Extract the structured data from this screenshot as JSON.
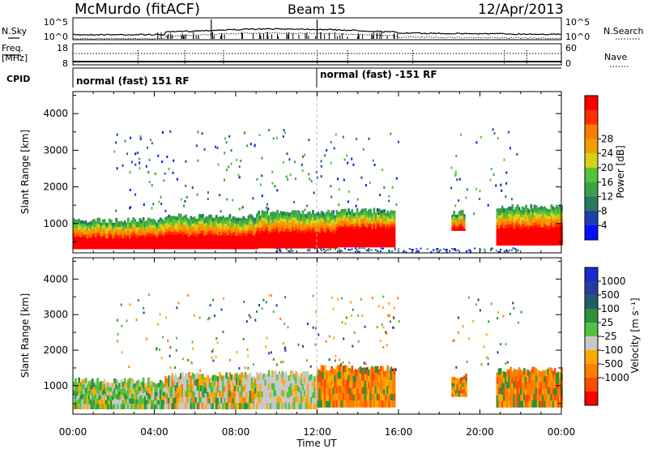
{
  "header": {
    "station": "McMurdo (fitACF)",
    "beam": "Beam 15",
    "date": "12/Apr/2013"
  },
  "strip": {
    "nsky_label": "N.Sky",
    "nsky_ticks": [
      "10^5",
      "10^0"
    ],
    "nsearch_label": "N.Search",
    "nsearch_ticks": [
      "10^5",
      "10^0"
    ],
    "freq_label": "Freq.",
    "freq_unit": "[MHz]",
    "freq_ticks": [
      "18",
      "8"
    ],
    "nave_label": "Nave",
    "nave_ticks": [
      "60",
      "0"
    ],
    "cpid_label": "CPID",
    "cpid_left": "normal (fast) 151 RF",
    "cpid_right": "normal (fast) -151 RF"
  },
  "colors": {
    "power": [
      "#0010ff",
      "#1f3fb0",
      "#287a5a",
      "#3aa34a",
      "#55c23a",
      "#d6d21a",
      "#f0a000",
      "#ff7a00",
      "#ff3000",
      "#ff0000"
    ],
    "velocity": [
      "#ff0000",
      "#ff4a00",
      "#ff8000",
      "#ffa800",
      "#c8c8c8",
      "#50c040",
      "#2f8f3f",
      "#235c6a",
      "#2a3aa0",
      "#1a2dcc"
    ]
  },
  "chart_data": [
    {
      "type": "heatmap",
      "name": "power",
      "ylabel": "Slant Range [km]",
      "yticks": [
        "1000",
        "2000",
        "3000",
        "4000"
      ],
      "ylim": [
        200,
        4600
      ],
      "xlim": [
        0,
        24
      ],
      "colorbar_label": "Power [dB]",
      "colorbar_ticks": [
        "4",
        "8",
        "12",
        "16",
        "20",
        "24",
        "28"
      ],
      "colorbar_range": [
        0,
        32
      ],
      "regions": [
        {
          "x0": 0.0,
          "x1": 4.5,
          "lower": 300,
          "core_top": 650,
          "edge_top": 1100
        },
        {
          "x0": 4.5,
          "x1": 9.0,
          "lower": 300,
          "core_top": 700,
          "edge_top": 1200
        },
        {
          "x0": 9.0,
          "x1": 13.0,
          "lower": 320,
          "core_top": 780,
          "edge_top": 1300
        },
        {
          "x0": 13.0,
          "x1": 15.8,
          "lower": 350,
          "core_top": 900,
          "edge_top": 1350
        },
        {
          "x0": 18.6,
          "x1": 19.2,
          "lower": 800,
          "core_top": 900,
          "edge_top": 1300
        },
        {
          "x0": 20.8,
          "x1": 24.0,
          "lower": 400,
          "core_top": 900,
          "edge_top": 1450
        }
      ]
    },
    {
      "type": "heatmap",
      "name": "velocity",
      "ylabel": "Slant Range [km]",
      "yticks": [
        "1000",
        "2000",
        "3000",
        "4000"
      ],
      "ylim": [
        200,
        4600
      ],
      "xlim": [
        0,
        24
      ],
      "colorbar_label": "Velocity [m s⁻¹]",
      "colorbar_ticks": [
        "1000",
        "500",
        "100",
        "25",
        "-25",
        "-100",
        "-500",
        "-1000"
      ],
      "regions": [
        {
          "x0": 0.0,
          "x1": 4.5,
          "lower": 350,
          "top": 1150,
          "tone": "green"
        },
        {
          "x0": 4.5,
          "x1": 9.0,
          "lower": 350,
          "top": 1300,
          "tone": "mixed"
        },
        {
          "x0": 9.0,
          "x1": 12.0,
          "lower": 350,
          "top": 1350,
          "tone": "gray"
        },
        {
          "x0": 12.0,
          "x1": 15.8,
          "lower": 400,
          "top": 1500,
          "tone": "orange"
        },
        {
          "x0": 18.6,
          "x1": 19.3,
          "lower": 700,
          "top": 1250,
          "tone": "orange"
        },
        {
          "x0": 20.8,
          "x1": 24.0,
          "lower": 400,
          "top": 1450,
          "tone": "orange"
        }
      ]
    }
  ],
  "xaxis": {
    "label": "Time UT",
    "ticks": [
      "00:00",
      "04:00",
      "08:00",
      "12:00",
      "16:00",
      "20:00",
      "00:00"
    ]
  }
}
